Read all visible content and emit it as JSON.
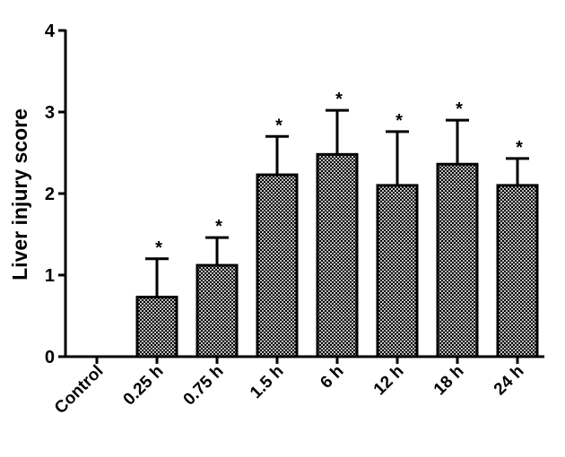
{
  "chart_data": {
    "type": "bar",
    "title": "",
    "xlabel": "",
    "ylabel": "Liver injury score",
    "categories": [
      "Control",
      "0.25 h",
      "0.75 h",
      "1.5 h",
      "6 h",
      "12 h",
      "18 h",
      "24 h"
    ],
    "values": [
      0,
      0.73,
      1.12,
      2.23,
      2.48,
      2.1,
      2.36,
      2.1
    ],
    "error_upper": [
      0,
      0.47,
      0.34,
      0.47,
      0.54,
      0.66,
      0.54,
      0.33
    ],
    "significance": [
      "",
      "*",
      "*",
      "*",
      "*",
      "*",
      "*",
      "*"
    ],
    "ylim": [
      0,
      4
    ],
    "yticks": [
      0,
      1,
      2,
      3,
      4
    ],
    "grid": false,
    "legend": "none",
    "colors": {
      "bar_fill": "#bdbdbd",
      "bar_pattern": "#000000",
      "axis": "#000000"
    }
  }
}
